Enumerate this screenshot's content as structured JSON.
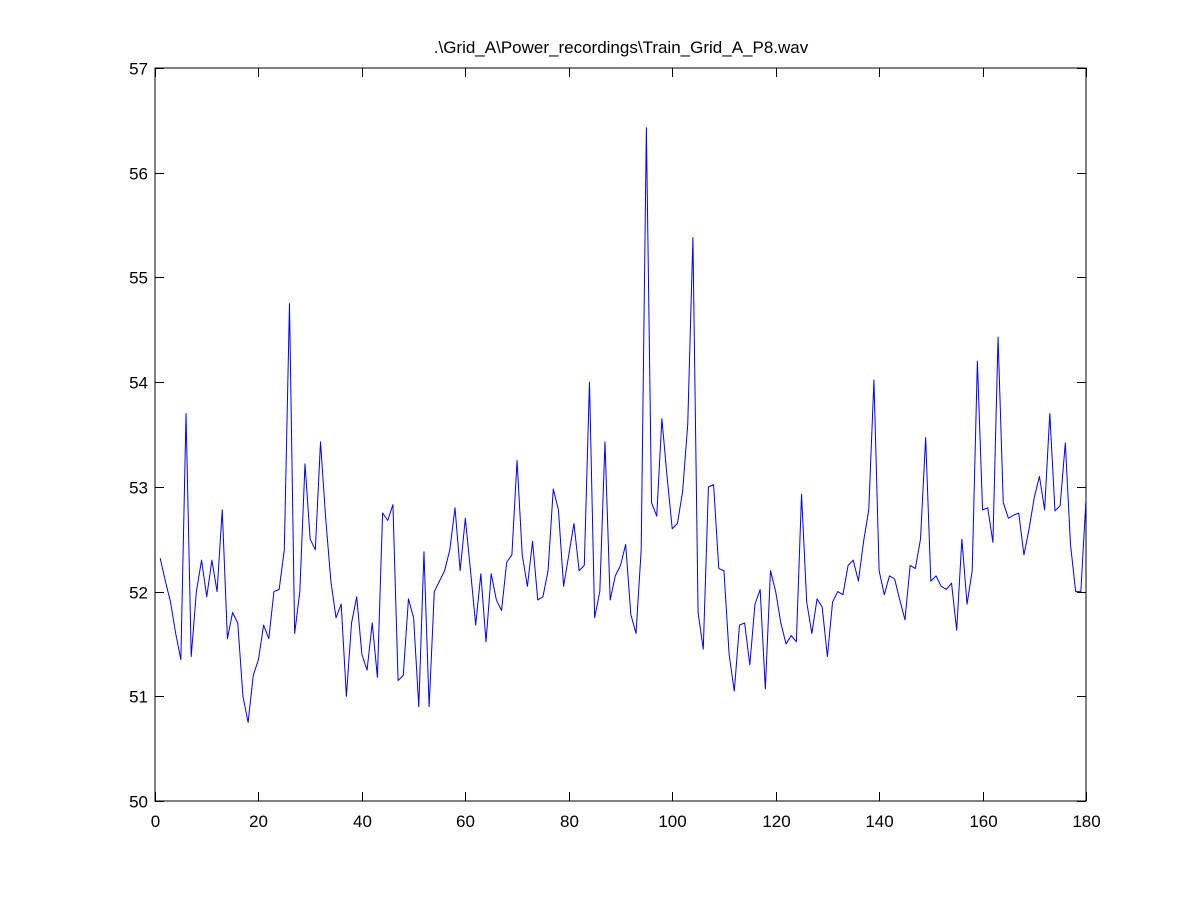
{
  "chart_data": {
    "type": "line",
    "title": ".\\Grid_A\\Power_recordings\\Train_Grid_A_P8.wav",
    "xlabel": "",
    "ylabel": "",
    "xlim": [
      0,
      180
    ],
    "ylim": [
      50,
      57
    ],
    "xticks": [
      0,
      20,
      40,
      60,
      80,
      100,
      120,
      140,
      160,
      180
    ],
    "yticks": [
      50,
      51,
      52,
      53,
      54,
      55,
      56,
      57
    ],
    "grid": false,
    "series": [
      {
        "color": "#0000ff",
        "x": [
          1,
          2,
          3,
          4,
          5,
          6,
          7,
          8,
          9,
          10,
          11,
          12,
          13,
          14,
          15,
          16,
          17,
          18,
          19,
          20,
          21,
          22,
          23,
          24,
          25,
          26,
          27,
          28,
          29,
          30,
          31,
          32,
          33,
          34,
          35,
          36,
          37,
          38,
          39,
          40,
          41,
          42,
          43,
          44,
          45,
          46,
          47,
          48,
          49,
          50,
          51,
          52,
          53,
          54,
          55,
          56,
          57,
          58,
          59,
          60,
          61,
          62,
          63,
          64,
          65,
          66,
          67,
          68,
          69,
          70,
          71,
          72,
          73,
          74,
          75,
          76,
          77,
          78,
          79,
          80,
          81,
          82,
          83,
          84,
          85,
          86,
          87,
          88,
          89,
          90,
          91,
          92,
          93,
          94,
          95,
          96,
          97,
          98,
          99,
          100,
          101,
          102,
          103,
          104,
          105,
          106,
          107,
          108,
          109,
          110,
          111,
          112,
          113,
          114,
          115,
          116,
          117,
          118,
          119,
          120,
          121,
          122,
          123,
          124,
          125,
          126,
          127,
          128,
          129,
          130,
          131,
          132,
          133,
          134,
          135,
          136,
          137,
          138,
          139,
          140,
          141,
          142,
          143,
          144,
          145,
          146,
          147,
          148,
          149,
          150,
          151,
          152,
          153,
          154,
          155,
          156,
          157,
          158,
          159,
          160,
          161,
          162,
          163,
          164,
          165,
          166,
          167,
          168,
          169,
          170,
          171,
          172,
          173,
          174,
          175,
          176,
          177,
          178,
          179,
          180
        ],
        "values": [
          52.32,
          52.1,
          51.9,
          51.6,
          51.35,
          53.7,
          51.38,
          52.0,
          52.3,
          51.95,
          52.3,
          52.0,
          52.78,
          51.55,
          51.8,
          51.7,
          51.0,
          50.75,
          51.2,
          51.35,
          51.68,
          51.55,
          52.0,
          52.02,
          52.4,
          54.75,
          51.6,
          52.0,
          53.22,
          52.5,
          52.4,
          53.43,
          52.7,
          52.1,
          51.75,
          51.88,
          51.0,
          51.7,
          51.95,
          51.4,
          51.25,
          51.7,
          51.18,
          52.75,
          52.68,
          52.83,
          51.15,
          51.2,
          51.93,
          51.75,
          50.9,
          52.38,
          50.9,
          52.0,
          52.1,
          52.2,
          52.4,
          52.8,
          52.2,
          52.7,
          52.2,
          51.68,
          52.17,
          51.52,
          52.17,
          51.92,
          51.82,
          52.28,
          52.35,
          53.25,
          52.35,
          52.05,
          52.48,
          51.92,
          51.95,
          52.2,
          52.98,
          52.78,
          52.05,
          52.35,
          52.65,
          52.2,
          52.25,
          54.0,
          51.75,
          52.0,
          53.43,
          51.92,
          52.15,
          52.25,
          52.45,
          51.78,
          51.6,
          52.4,
          56.43,
          52.85,
          52.72,
          53.65,
          53.1,
          52.6,
          52.65,
          52.95,
          53.6,
          55.38,
          51.8,
          51.45,
          53.0,
          53.02,
          52.22,
          52.2,
          51.4,
          51.05,
          51.68,
          51.7,
          51.3,
          51.88,
          52.02,
          51.07,
          52.2,
          52.0,
          51.7,
          51.5,
          51.58,
          51.52,
          52.93,
          51.9,
          51.6,
          51.93,
          51.85,
          51.38,
          51.9,
          52.0,
          51.97,
          52.25,
          52.3,
          52.1,
          52.48,
          52.78,
          54.02,
          52.2,
          51.97,
          52.15,
          52.12,
          51.92,
          51.73,
          52.25,
          52.22,
          52.5,
          53.47,
          52.1,
          52.15,
          52.05,
          52.02,
          52.08,
          51.63,
          52.5,
          51.88,
          52.2,
          54.2,
          52.78,
          52.8,
          52.47,
          54.43,
          52.85,
          52.7,
          52.73,
          52.75,
          52.35,
          52.6,
          52.9,
          53.1,
          52.78,
          53.7,
          52.77,
          52.82,
          53.42,
          52.45,
          52.0,
          52.0,
          52.88
        ]
      }
    ]
  }
}
